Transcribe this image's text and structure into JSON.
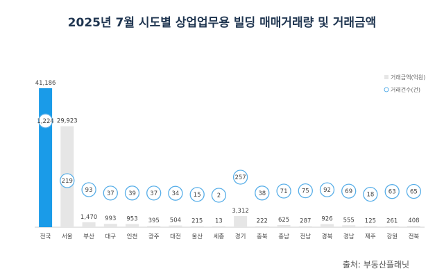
{
  "title": "2025년 7월 시도별 상업업무용 빌딩 매매거래량 및 거래금액",
  "source": "출처: 부동산플래닛",
  "colors": {
    "title": "#1f3550",
    "bar_default": "#e6e6e6",
    "bar_highlight": "#1a9be8",
    "circle_stroke": "#57aee8",
    "circle_fill": "#ffffff",
    "label": "#444444",
    "axis": "#cccccc"
  },
  "chart_data": {
    "type": "bar",
    "title": "2025년 7월 시도별 상업업무용 빌딩 매매거래량 및 거래금액",
    "categories": [
      "전국",
      "서울",
      "부산",
      "대구",
      "인천",
      "광주",
      "대전",
      "울산",
      "세종",
      "경기",
      "충북",
      "충남",
      "전남",
      "경북",
      "경남",
      "제주",
      "강원",
      "전북"
    ],
    "series": [
      {
        "name": "거래금액(억원)",
        "values": [
          41186,
          29923,
          1470,
          993,
          953,
          395,
          504,
          215,
          13,
          3312,
          222,
          625,
          287,
          926,
          555,
          125,
          261,
          408
        ],
        "value_labels": [
          "41,186",
          "29,923",
          "1,470",
          "993",
          "953",
          "395",
          "504",
          "215",
          "13",
          "3,312",
          "222",
          "625",
          "287",
          "926",
          "555",
          "125",
          "261",
          "408"
        ]
      },
      {
        "name": "거래건수(건)",
        "values": [
          1224,
          219,
          93,
          37,
          39,
          37,
          34,
          15,
          2,
          257,
          38,
          71,
          75,
          92,
          69,
          18,
          63,
          65
        ],
        "value_labels": [
          "1,224",
          "219",
          "93",
          "37",
          "39",
          "37",
          "34",
          "15",
          "2",
          "257",
          "38",
          "71",
          "75",
          "92",
          "69",
          "18",
          "63",
          "65"
        ]
      }
    ],
    "highlight_category": "전국",
    "legend_position": "top-right",
    "grid": false
  }
}
